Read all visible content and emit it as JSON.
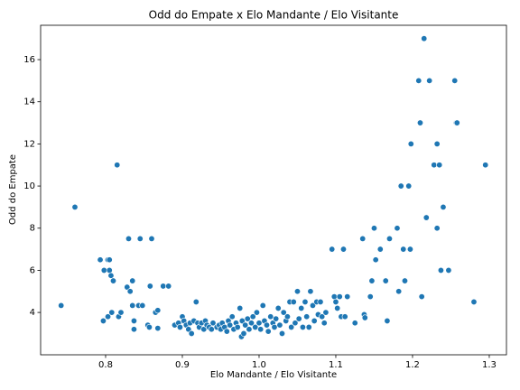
{
  "chart_data": {
    "type": "scatter",
    "title": "Odd do Empate x Elo Mandante / Elo Visitante",
    "x_label": "Elo Mandante / Elo Visitante",
    "y_label": "Odd do Empate",
    "color": "#1f77b4",
    "xlim": [
      0.7153,
      1.3224
    ],
    "ylim": [
      1.99,
      17.63
    ],
    "xticks": [
      {
        "value": 0.8,
        "label": "0.8"
      },
      0.9,
      {
        "value": 1.0,
        "label": "1.0"
      },
      1.1,
      1.2,
      1.3
    ],
    "yticks": [
      4,
      6,
      8,
      10,
      12,
      14,
      16
    ],
    "x": [
      0.742,
      0.76,
      0.793,
      0.797,
      0.798,
      0.803,
      0.805,
      0.803,
      0.805,
      0.807,
      0.808,
      0.81,
      0.815,
      0.817,
      0.82,
      0.828,
      0.83,
      0.832,
      0.835,
      0.835,
      0.837,
      0.837,
      0.845,
      0.843,
      0.848,
      0.855,
      0.857,
      0.858,
      0.86,
      0.865,
      0.868,
      0.868,
      0.875,
      0.882,
      0.89,
      0.895,
      0.897,
      0.9,
      0.902,
      0.905,
      0.908,
      0.91,
      0.912,
      0.915,
      0.918,
      0.92,
      0.922,
      0.925,
      0.928,
      0.93,
      0.932,
      0.935,
      0.938,
      0.94,
      0.945,
      0.948,
      0.95,
      0.952,
      0.955,
      0.958,
      0.96,
      0.962,
      0.965,
      0.967,
      0.97,
      0.972,
      0.975,
      0.977,
      0.978,
      0.98,
      0.982,
      0.985,
      0.987,
      0.99,
      0.992,
      0.995,
      0.997,
      1.0,
      1.002,
      1.005,
      1.007,
      1.01,
      1.012,
      1.015,
      1.018,
      1.02,
      1.022,
      1.025,
      1.027,
      1.03,
      1.032,
      1.035,
      1.037,
      1.04,
      1.042,
      1.045,
      1.047,
      1.05,
      1.052,
      1.055,
      1.057,
      1.06,
      1.062,
      1.065,
      1.067,
      1.07,
      1.072,
      1.075,
      1.077,
      1.08,
      1.082,
      1.085,
      1.087,
      1.095,
      1.098,
      1.1,
      1.102,
      1.105,
      1.107,
      1.11,
      1.112,
      1.115,
      1.125,
      1.135,
      1.137,
      1.138,
      1.145,
      1.147,
      1.15,
      1.152,
      1.158,
      1.165,
      1.167,
      1.17,
      1.18,
      1.182,
      1.185,
      1.188,
      1.19,
      1.195,
      1.197,
      1.198,
      1.208,
      1.21,
      1.212,
      1.215,
      1.218,
      1.222,
      1.228,
      1.232,
      1.235,
      1.232,
      1.237,
      1.24,
      1.247,
      1.255,
      1.257,
      1.258,
      1.28,
      1.295
    ],
    "y": [
      4.33,
      9,
      6.5,
      3.6,
      6,
      6.5,
      6.5,
      3.8,
      6,
      5.75,
      4,
      5.5,
      11,
      3.8,
      4,
      5.2,
      7.5,
      5,
      5.5,
      4.33,
      3.6,
      3.2,
      7.5,
      4.33,
      4.33,
      3.4,
      3.3,
      5.25,
      7.5,
      4,
      4.1,
      3.25,
      5.25,
      5.25,
      3.4,
      3.5,
      3.3,
      3.8,
      3.6,
      3.4,
      3.2,
      3.5,
      3.0,
      3.6,
      4.5,
      3.5,
      3.3,
      3.5,
      3.2,
      3.6,
      3.4,
      3.3,
      3.2,
      3.5,
      3.3,
      3.4,
      3.2,
      3.5,
      3.3,
      3.1,
      3.6,
      3.4,
      3.8,
      3.2,
      3.5,
      3.3,
      4.2,
      2.85,
      3.6,
      3.0,
      3.4,
      3.7,
      3.2,
      3.5,
      3.8,
      3.3,
      4.0,
      3.5,
      3.2,
      4.33,
      3.6,
      3.4,
      3.1,
      3.8,
      3.5,
      3.3,
      3.7,
      4.2,
      3.4,
      3.0,
      4.0,
      3.6,
      3.8,
      4.5,
      3.3,
      4.5,
      3.5,
      5.0,
      3.7,
      4.2,
      3.3,
      4.5,
      3.8,
      3.3,
      5.0,
      4.33,
      3.6,
      4.5,
      3.9,
      4.5,
      3.8,
      3.5,
      4.0,
      7,
      4.75,
      4.5,
      4.2,
      4.75,
      3.8,
      7,
      3.8,
      4.75,
      3.5,
      7.5,
      3.9,
      3.75,
      4.75,
      5.5,
      8,
      6.5,
      7,
      5.5,
      3.6,
      7.5,
      8,
      5,
      10,
      7,
      5.5,
      10,
      7,
      12,
      15,
      13,
      4.75,
      17,
      8.5,
      15,
      11,
      12,
      11,
      8,
      6,
      9,
      6,
      15,
      13,
      13,
      4.5,
      11
    ]
  }
}
